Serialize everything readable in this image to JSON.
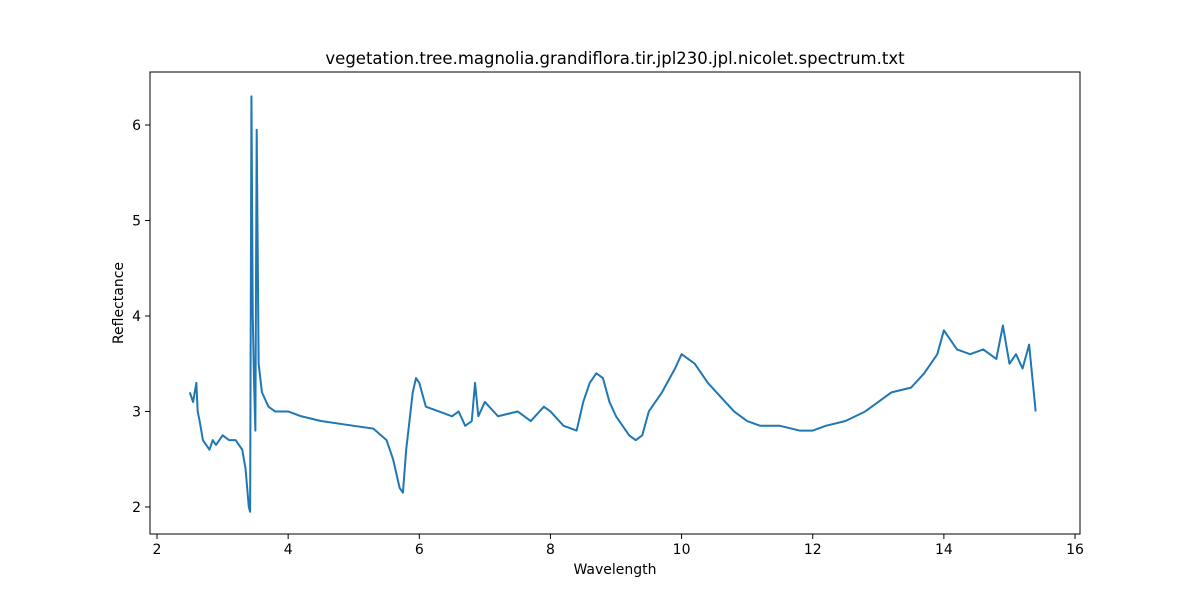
{
  "chart_data": {
    "type": "line",
    "title": "vegetation.tree.magnolia.grandiflora.tir.jpl230.jpl.nicolet.spectrum.txt",
    "x_label": "Wavelength",
    "y_label": "Reflectance",
    "x": [
      2.5,
      2.55,
      2.6,
      2.62,
      2.65,
      2.7,
      2.75,
      2.8,
      2.85,
      2.9,
      3.0,
      3.1,
      3.2,
      3.3,
      3.35,
      3.4,
      3.42,
      3.44,
      3.46,
      3.48,
      3.5,
      3.52,
      3.55,
      3.6,
      3.7,
      3.8,
      4.0,
      4.2,
      4.5,
      5.0,
      5.3,
      5.5,
      5.6,
      5.7,
      5.75,
      5.8,
      5.9,
      5.95,
      6.0,
      6.1,
      6.3,
      6.5,
      6.6,
      6.7,
      6.8,
      6.85,
      6.9,
      7.0,
      7.2,
      7.5,
      7.7,
      7.9,
      8.0,
      8.2,
      8.4,
      8.5,
      8.6,
      8.7,
      8.8,
      8.9,
      9.0,
      9.1,
      9.2,
      9.3,
      9.4,
      9.5,
      9.7,
      9.9,
      10.0,
      10.2,
      10.4,
      10.6,
      10.8,
      11.0,
      11.2,
      11.5,
      11.8,
      12.0,
      12.2,
      12.5,
      12.8,
      13.0,
      13.2,
      13.5,
      13.7,
      13.9,
      14.0,
      14.2,
      14.4,
      14.6,
      14.8,
      14.9,
      15.0,
      15.1,
      15.2,
      15.3,
      15.4
    ],
    "series": [
      {
        "color": "#1f77b4",
        "values": [
          3.2,
          3.1,
          3.3,
          3.0,
          2.9,
          2.7,
          2.65,
          2.6,
          2.7,
          2.65,
          2.75,
          2.7,
          2.7,
          2.6,
          2.4,
          2.0,
          1.95,
          6.3,
          4.0,
          3.3,
          2.8,
          5.95,
          3.5,
          3.2,
          3.05,
          3.0,
          3.0,
          2.95,
          2.9,
          2.85,
          2.82,
          2.7,
          2.5,
          2.2,
          2.15,
          2.6,
          3.2,
          3.35,
          3.3,
          3.05,
          3.0,
          2.95,
          3.0,
          2.85,
          2.9,
          3.3,
          2.95,
          3.1,
          2.95,
          3.0,
          2.9,
          3.05,
          3.0,
          2.85,
          2.8,
          3.1,
          3.3,
          3.4,
          3.35,
          3.1,
          2.95,
          2.85,
          2.75,
          2.7,
          2.75,
          3.0,
          3.2,
          3.45,
          3.6,
          3.5,
          3.3,
          3.15,
          3.0,
          2.9,
          2.85,
          2.85,
          2.8,
          2.8,
          2.85,
          2.9,
          3.0,
          3.1,
          3.2,
          3.25,
          3.4,
          3.6,
          3.85,
          3.65,
          3.6,
          3.65,
          3.55,
          3.9,
          3.5,
          3.6,
          3.45,
          3.7,
          3.0
        ]
      }
    ],
    "xlim": [
      1.893,
      16.076
    ],
    "ylim": [
      1.717,
      6.555
    ],
    "xticks": [
      2,
      4,
      6,
      8,
      10,
      12,
      14,
      16
    ],
    "yticks": [
      2,
      3,
      4,
      5,
      6
    ]
  }
}
